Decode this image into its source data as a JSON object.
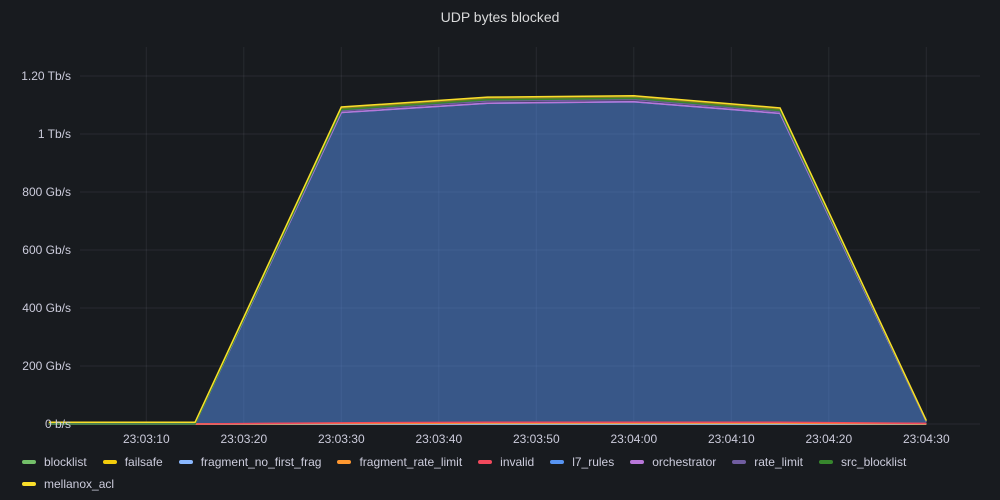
{
  "panel": {
    "title": "UDP bytes blocked"
  },
  "chart_data": {
    "type": "area",
    "title": "UDP bytes blocked",
    "xlabel": "",
    "ylabel": "",
    "stacked": true,
    "grid": true,
    "legend_position": "bottom",
    "y_unit": "Gb/s",
    "ylim": [
      0,
      1300
    ],
    "y_ticks": [
      {
        "value": 0,
        "label": "0 b/s"
      },
      {
        "value": 200,
        "label": "200 Gb/s"
      },
      {
        "value": 400,
        "label": "400 Gb/s"
      },
      {
        "value": 600,
        "label": "600 Gb/s"
      },
      {
        "value": 800,
        "label": "800 Gb/s"
      },
      {
        "value": 1000,
        "label": "1 Tb/s"
      },
      {
        "value": 1200,
        "label": "1.20 Tb/s"
      }
    ],
    "x_ticks": [
      "23:03:10",
      "23:03:20",
      "23:03:30",
      "23:03:40",
      "23:03:50",
      "23:04:00",
      "23:04:10",
      "23:04:20",
      "23:04:30"
    ],
    "x": [
      "23:03:00",
      "23:03:15",
      "23:03:30",
      "23:03:45",
      "23:04:00",
      "23:04:15",
      "23:04:30"
    ],
    "series": [
      {
        "name": "blocklist",
        "color": "#73bf69",
        "values": [
          0,
          0,
          0,
          0,
          0,
          0,
          0
        ]
      },
      {
        "name": "failsafe",
        "color": "#f2cc0c",
        "values": [
          0,
          0,
          0,
          0,
          0,
          0,
          0
        ]
      },
      {
        "name": "fragment_no_first_frag",
        "color": "#8ab8ff",
        "values": [
          0,
          0,
          0,
          0,
          0,
          0,
          0
        ]
      },
      {
        "name": "fragment_rate_limit",
        "color": "#ff9830",
        "values": [
          0,
          0,
          2,
          3,
          3,
          3,
          1
        ]
      },
      {
        "name": "invalid",
        "color": "#f2495c",
        "values": [
          0,
          0,
          2,
          3,
          3,
          3,
          1
        ]
      },
      {
        "name": "l7_rules",
        "color": "#5794f2",
        "values": [
          0,
          0,
          1070,
          1100,
          1105,
          1065,
          7
        ]
      },
      {
        "name": "orchestrator",
        "color": "#b877d9",
        "values": [
          0,
          0,
          0,
          0,
          0,
          0,
          0
        ]
      },
      {
        "name": "rate_limit",
        "color": "#705da0",
        "values": [
          0,
          0,
          6,
          8,
          8,
          6,
          1
        ]
      },
      {
        "name": "src_blocklist",
        "color": "#37872d",
        "values": [
          0,
          0,
          4,
          4,
          4,
          4,
          1
        ]
      },
      {
        "name": "mellanox_acl",
        "color": "#fade2a",
        "values": [
          6,
          6,
          9,
          9,
          9,
          9,
          1
        ]
      }
    ]
  }
}
